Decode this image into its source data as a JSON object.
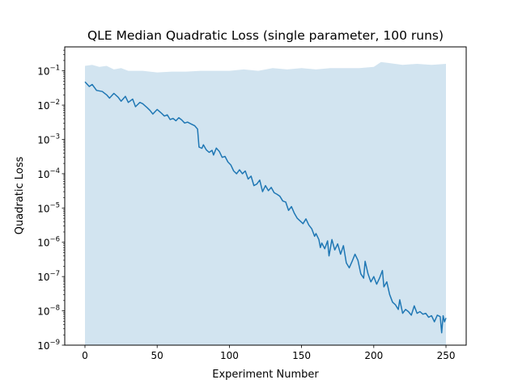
{
  "chart_data": {
    "type": "line",
    "title": "QLE Median Quadratic Loss (single parameter, 100 runs)",
    "xlabel": "Experiment Number",
    "ylabel": "Quadratic Loss",
    "yscale": "log",
    "xlim": [
      -14,
      264
    ],
    "ylim": [
      1e-09,
      0.5
    ],
    "grid": false,
    "x_ticks": [
      {
        "value": 0,
        "label": "0"
      },
      {
        "value": 50,
        "label": "50"
      },
      {
        "value": 100,
        "label": "100"
      },
      {
        "value": 150,
        "label": "150"
      },
      {
        "value": 200,
        "label": "200"
      },
      {
        "value": 250,
        "label": "250"
      }
    ],
    "y_ticks": [
      {
        "value": 1e-09,
        "base": "10",
        "exp": "−9"
      },
      {
        "value": 1e-08,
        "base": "10",
        "exp": "−8"
      },
      {
        "value": 1e-07,
        "base": "10",
        "exp": "−7"
      },
      {
        "value": 1e-06,
        "base": "10",
        "exp": "−6"
      },
      {
        "value": 1e-05,
        "base": "10",
        "exp": "−5"
      },
      {
        "value": 0.0001,
        "base": "10",
        "exp": "−4"
      },
      {
        "value": 0.001,
        "base": "10",
        "exp": "−3"
      },
      {
        "value": 0.01,
        "base": "10",
        "exp": "−2"
      },
      {
        "value": 0.1,
        "base": "10",
        "exp": "−1"
      }
    ],
    "series": [
      {
        "line_color": "#1f77b4",
        "band_color": "#1f77b4",
        "band_opacity": 0.2,
        "median": [
          [
            0,
            0.048
          ],
          [
            3,
            0.035
          ],
          [
            5,
            0.04
          ],
          [
            8,
            0.027
          ],
          [
            12,
            0.025
          ],
          [
            15,
            0.02
          ],
          [
            17,
            0.016
          ],
          [
            20,
            0.022
          ],
          [
            23,
            0.017
          ],
          [
            25,
            0.013
          ],
          [
            28,
            0.018
          ],
          [
            30,
            0.012
          ],
          [
            33,
            0.015
          ],
          [
            35,
            0.009
          ],
          [
            38,
            0.012
          ],
          [
            40,
            0.011
          ],
          [
            43,
            0.0085
          ],
          [
            45,
            0.007
          ],
          [
            47,
            0.0055
          ],
          [
            50,
            0.0075
          ],
          [
            53,
            0.0058
          ],
          [
            55,
            0.0048
          ],
          [
            57,
            0.0052
          ],
          [
            59,
            0.0038
          ],
          [
            61,
            0.0041
          ],
          [
            63,
            0.0035
          ],
          [
            65,
            0.0043
          ],
          [
            67,
            0.0037
          ],
          [
            69,
            0.003
          ],
          [
            71,
            0.0032
          ],
          [
            73,
            0.0029
          ],
          [
            76,
            0.0025
          ],
          [
            78,
            0.002
          ],
          [
            79,
            0.0006
          ],
          [
            81,
            0.00055
          ],
          [
            82,
            0.0007
          ],
          [
            84,
            0.0005
          ],
          [
            86,
            0.00042
          ],
          [
            88,
            0.00048
          ],
          [
            89,
            0.00035
          ],
          [
            91,
            0.00056
          ],
          [
            93,
            0.00045
          ],
          [
            95,
            0.0003
          ],
          [
            97,
            0.00032
          ],
          [
            99,
            0.00022
          ],
          [
            101,
            0.00018
          ],
          [
            103,
            0.00012
          ],
          [
            105,
            0.0001
          ],
          [
            107,
            0.00013
          ],
          [
            109,
            0.0001
          ],
          [
            111,
            0.00012
          ],
          [
            113,
            7e-05
          ],
          [
            115,
            8.5e-05
          ],
          [
            117,
            4.5e-05
          ],
          [
            119,
            5e-05
          ],
          [
            121,
            6.5e-05
          ],
          [
            123,
            3e-05
          ],
          [
            125,
            4.5e-05
          ],
          [
            127,
            3.2e-05
          ],
          [
            129,
            4e-05
          ],
          [
            131,
            2.8e-05
          ],
          [
            133,
            2.5e-05
          ],
          [
            135,
            2.2e-05
          ],
          [
            137,
            1.6e-05
          ],
          [
            139,
            1.5e-05
          ],
          [
            141,
            8.5e-06
          ],
          [
            143,
            1.1e-05
          ],
          [
            145,
            7e-06
          ],
          [
            147,
            5e-06
          ],
          [
            149,
            4.2e-06
          ],
          [
            151,
            3.5e-06
          ],
          [
            153,
            4.8e-06
          ],
          [
            155,
            3.2e-06
          ],
          [
            157,
            2.5e-06
          ],
          [
            159,
            1.5e-06
          ],
          [
            160,
            1.8e-06
          ],
          [
            162,
            1.2e-06
          ],
          [
            163,
            7e-07
          ],
          [
            164,
            9.5e-07
          ],
          [
            166,
            6.5e-07
          ],
          [
            168,
            1.1e-06
          ],
          [
            169,
            4e-07
          ],
          [
            171,
            1.2e-06
          ],
          [
            173,
            6e-07
          ],
          [
            175,
            9e-07
          ],
          [
            177,
            4.5e-07
          ],
          [
            179,
            8e-07
          ],
          [
            181,
            2.5e-07
          ],
          [
            183,
            1.8e-07
          ],
          [
            185,
            2.8e-07
          ],
          [
            187,
            4.5e-07
          ],
          [
            189,
            3e-07
          ],
          [
            191,
            1.2e-07
          ],
          [
            193,
            9e-08
          ],
          [
            194,
            2.8e-07
          ],
          [
            196,
            1.2e-07
          ],
          [
            198,
            7e-08
          ],
          [
            200,
            1e-07
          ],
          [
            202,
            6e-08
          ],
          [
            204,
            9e-08
          ],
          [
            206,
            1.5e-07
          ],
          [
            207,
            5e-08
          ],
          [
            209,
            7e-08
          ],
          [
            211,
            3e-08
          ],
          [
            213,
            1.8e-08
          ],
          [
            215,
            1.5e-08
          ],
          [
            217,
            1.1e-08
          ],
          [
            218,
            2.1e-08
          ],
          [
            220,
            8.5e-09
          ],
          [
            222,
            1.1e-08
          ],
          [
            224,
            9.5e-09
          ],
          [
            226,
            7.5e-09
          ],
          [
            228,
            1.4e-08
          ],
          [
            230,
            8.5e-09
          ],
          [
            232,
            9.5e-09
          ],
          [
            234,
            8e-09
          ],
          [
            236,
            8.5e-09
          ],
          [
            238,
            6.5e-09
          ],
          [
            240,
            7.2e-09
          ],
          [
            242,
            4.8e-09
          ],
          [
            244,
            7.5e-09
          ],
          [
            246,
            6.8e-09
          ],
          [
            247,
            2.3e-09
          ],
          [
            248,
            7.2e-09
          ],
          [
            249,
            4.8e-09
          ],
          [
            250,
            6.2e-09
          ]
        ],
        "band_upper": [
          [
            0,
            0.14
          ],
          [
            5,
            0.15
          ],
          [
            10,
            0.13
          ],
          [
            15,
            0.14
          ],
          [
            20,
            0.11
          ],
          [
            25,
            0.12
          ],
          [
            30,
            0.1
          ],
          [
            40,
            0.1
          ],
          [
            50,
            0.09
          ],
          [
            60,
            0.095
          ],
          [
            70,
            0.095
          ],
          [
            80,
            0.1
          ],
          [
            90,
            0.1
          ],
          [
            100,
            0.1
          ],
          [
            110,
            0.11
          ],
          [
            120,
            0.1
          ],
          [
            130,
            0.12
          ],
          [
            140,
            0.11
          ],
          [
            150,
            0.12
          ],
          [
            160,
            0.11
          ],
          [
            170,
            0.12
          ],
          [
            180,
            0.12
          ],
          [
            190,
            0.12
          ],
          [
            200,
            0.13
          ],
          [
            205,
            0.18
          ],
          [
            210,
            0.17
          ],
          [
            220,
            0.15
          ],
          [
            230,
            0.16
          ],
          [
            240,
            0.15
          ],
          [
            250,
            0.16
          ]
        ],
        "band_lower": [
          [
            0,
            1e-09
          ],
          [
            250,
            1e-09
          ]
        ]
      }
    ]
  }
}
